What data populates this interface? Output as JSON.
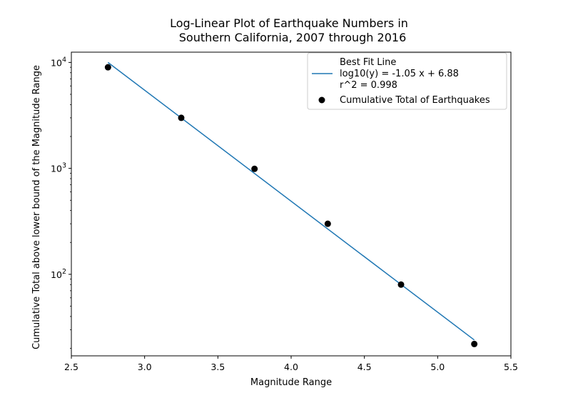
{
  "chart_data": {
    "type": "scatter",
    "title_lines": [
      "Log-Linear Plot of Earthquake Numbers in",
      "Southern California, 2007 through 2016"
    ],
    "xlabel": "Magnitude Range",
    "ylabel": "Cumulative Total above lower bound of the Magnitude Range",
    "xlim": [
      2.5,
      5.5
    ],
    "ylim": [
      17,
      12500
    ],
    "yscale": "log",
    "grid": false,
    "legend_position": "upper right",
    "xticks": [
      2.5,
      3.0,
      3.5,
      4.0,
      4.5,
      5.0,
      5.5
    ],
    "xtick_labels": [
      "2.5",
      "3.0",
      "3.5",
      "4.0",
      "4.5",
      "5.0",
      "5.5"
    ],
    "yticks": [
      100,
      1000,
      10000
    ],
    "ytick_labels": [
      {
        "base": "10",
        "exp": "2"
      },
      {
        "base": "10",
        "exp": "3"
      },
      {
        "base": "10",
        "exp": "4"
      }
    ],
    "series": [
      {
        "name": "Best Fit Line",
        "kind": "line",
        "color": "#1f77b4",
        "x": [
          2.75,
          5.25
        ],
        "y": [
          10000,
          24
        ],
        "legend_lines": [
          "Best Fit Line",
          "log10(y) = -1.05 x + 6.88",
          "r^2 = 0.998"
        ]
      },
      {
        "name": "Cumulative Total of Earthquakes",
        "kind": "scatter",
        "color": "#000000",
        "x": [
          2.75,
          3.25,
          3.75,
          4.25,
          4.75,
          5.25
        ],
        "y": [
          9000,
          3000,
          990,
          300,
          80,
          22
        ]
      }
    ]
  }
}
